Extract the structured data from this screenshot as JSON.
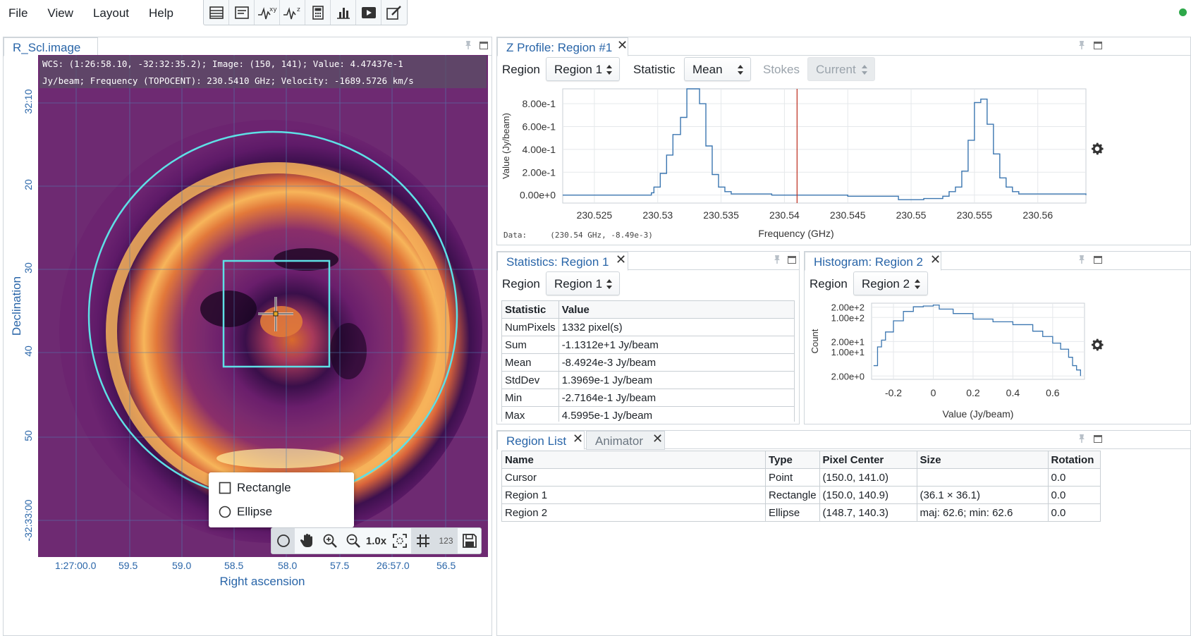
{
  "menu": [
    "File",
    "View",
    "Layout",
    "Help"
  ],
  "toolbar_icons": [
    "region-list-icon",
    "image-info-icon",
    "spatial-profile-icon",
    "spectral-profile-icon",
    "statistics-icon",
    "histogram-icon",
    "animator-icon",
    "stokes-icon"
  ],
  "image_panel": {
    "tab": "R_Scl.image",
    "wcs_line1": "WCS: (1:26:58.10, -32:32:35.2); Image: (150, 141); Value:  4.47437e-1",
    "wcs_line2": "Jy/beam; Frequency (TOPOCENT): 230.5410 GHz; Velocity: -1689.5726 km/s",
    "dec_ticks": [
      "32:10",
      "20",
      "30",
      "40",
      "50",
      "-32:33:00"
    ],
    "ra_ticks": [
      "1:27:00.0",
      "59.5",
      "59.0",
      "58.5",
      "58.0",
      "57.5",
      "26:57.0",
      "56.5"
    ],
    "ylabel": "Declination",
    "xlabel": "Right ascension",
    "region_popup": [
      "Rectangle",
      "Ellipse"
    ],
    "zoom_label": "1.0x",
    "coord_label": "123"
  },
  "z_profile": {
    "tab": "Z Profile: Region #1",
    "region_label": "Region",
    "region_value": "Region 1",
    "statistic_label": "Statistic",
    "statistic_value": "Mean",
    "stokes_label": "Stokes",
    "stokes_value": "Current",
    "data_readout": "Data:     (230.54 GHz, -8.49e-3)",
    "chart_data": {
      "type": "line",
      "xlabel": "Frequency (GHz)",
      "ylabel": "Value (Jy/beam)",
      "x_ticks": [
        "230.525",
        "230.53",
        "230.535",
        "230.54",
        "230.545",
        "230.55",
        "230.555",
        "230.56"
      ],
      "y_ticks": [
        "0.00e+0",
        "2.00e-1",
        "4.00e-1",
        "6.00e-1",
        "8.00e-1"
      ],
      "xlim": [
        230.5225,
        230.5638
      ],
      "ylim": [
        -0.07,
        0.93
      ],
      "marker_x": 230.541,
      "x": [
        230.5225,
        230.526,
        230.5295,
        230.5297,
        230.5302,
        230.5307,
        230.5312,
        230.5318,
        230.5323,
        230.5328,
        230.5333,
        230.5338,
        230.5343,
        230.5348,
        230.5353,
        230.5358,
        230.5363,
        230.539,
        230.541,
        230.545,
        230.549,
        230.551,
        230.5525,
        230.553,
        230.5535,
        230.554,
        230.5545,
        230.555,
        230.5555,
        230.556,
        230.5565,
        230.557,
        230.5575,
        230.558,
        230.5585,
        230.559,
        230.5638
      ],
      "y": [
        0.0,
        0.0,
        0.02,
        0.07,
        0.19,
        0.35,
        0.53,
        0.68,
        0.93,
        0.93,
        0.8,
        0.43,
        0.18,
        0.07,
        0.03,
        0.01,
        0.01,
        0.0,
        0.0,
        -0.01,
        -0.04,
        -0.03,
        -0.01,
        0.03,
        0.07,
        0.21,
        0.48,
        0.81,
        0.84,
        0.62,
        0.36,
        0.15,
        0.07,
        0.03,
        0.01,
        0.01,
        0.0
      ]
    }
  },
  "statistics": {
    "tab": "Statistics: Region 1",
    "region_label": "Region",
    "region_value": "Region 1",
    "headers": [
      "Statistic",
      "Value"
    ],
    "rows": [
      [
        "NumPixels",
        "1332 pixel(s)"
      ],
      [
        "Sum",
        "-1.1312e+1 Jy/beam"
      ],
      [
        "Mean",
        "-8.4924e-3 Jy/beam"
      ],
      [
        "StdDev",
        "1.3969e-1 Jy/beam"
      ],
      [
        "Min",
        "-2.7164e-1 Jy/beam"
      ],
      [
        "Max",
        "4.5995e-1 Jy/beam"
      ]
    ]
  },
  "histogram": {
    "tab": "Histogram: Region 2",
    "region_label": "Region",
    "region_value": "Region 2",
    "chart_data": {
      "type": "line",
      "xlabel": "Value (Jy/beam)",
      "ylabel": "Count",
      "x_ticks": [
        "-0.2",
        "0",
        "0.2",
        "0.4",
        "0.6"
      ],
      "y_ticks": [
        "2.00e+0",
        "1.00e+1",
        "2.00e+1",
        "1.00e+2",
        "2.00e+2"
      ],
      "xlim": [
        -0.31,
        0.76
      ],
      "x": [
        -0.3,
        -0.28,
        -0.26,
        -0.24,
        -0.2,
        -0.15,
        -0.1,
        -0.05,
        0,
        0.03,
        0.1,
        0.2,
        0.3,
        0.4,
        0.5,
        0.55,
        0.6,
        0.64,
        0.68,
        0.7,
        0.72,
        0.74
      ],
      "y": [
        4,
        14,
        22,
        38,
        80,
        150,
        205,
        215,
        230,
        175,
        130,
        90,
        75,
        62,
        40,
        28,
        18,
        12,
        7,
        4,
        3,
        2
      ]
    }
  },
  "region_list": {
    "tab": "Region List",
    "tab2": "Animator",
    "headers": [
      "Name",
      "Type",
      "Pixel Center",
      "Size",
      "Rotation"
    ],
    "rows": [
      [
        "Cursor",
        "Point",
        "(150.0, 141.0)",
        "",
        "0.0"
      ],
      [
        "Region 1",
        "Rectangle",
        "(150.0, 140.9)",
        "(36.1 × 36.1)",
        "0.0"
      ],
      [
        "Region 2",
        "Ellipse",
        "(148.7, 140.3)",
        "maj: 62.6; min: 62.6",
        "0.0"
      ]
    ]
  },
  "colors": {
    "accent": "#2965a8",
    "region": "#5ee0e6",
    "status": "#2ea84a"
  }
}
